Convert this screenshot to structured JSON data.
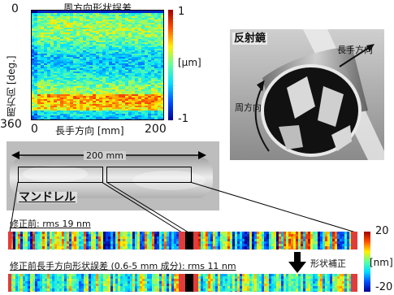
{
  "top_map": {
    "title": "周方向形状誤差",
    "ylabel": "周方向 [deg.]",
    "y_tick_top": "0",
    "y_tick_bottom": "360",
    "x_tick_left": "0",
    "x_label": "長手方向 [mm]",
    "x_tick_right": "200",
    "colorbar_max": "1",
    "colorbar_unit": "[μm]",
    "colorbar_min": "-1"
  },
  "mirror_photo": {
    "title": "反射鏡",
    "axial_label": "長手方向",
    "circ_label": "周方向"
  },
  "mandrel_photo": {
    "dimension_label": "200 mm",
    "title": "マンドレル"
  },
  "profiles": {
    "before_label": "修正前: rms 19 nm",
    "after_label": "修正前長手方向形状誤差 (0.6-5 mm 成分): rms 11 nm",
    "arrow_label": "形状補正",
    "colorbar_max": "20",
    "colorbar_unit": "[nm]",
    "colorbar_min": "-20"
  },
  "colors": {
    "jet": [
      "#00008f",
      "#0050ff",
      "#00dfff",
      "#60ff9f",
      "#ffef00",
      "#ff5000",
      "#a00000"
    ],
    "accent_red": "#e23b3b",
    "photo_bg": "#c9c9c9"
  }
}
